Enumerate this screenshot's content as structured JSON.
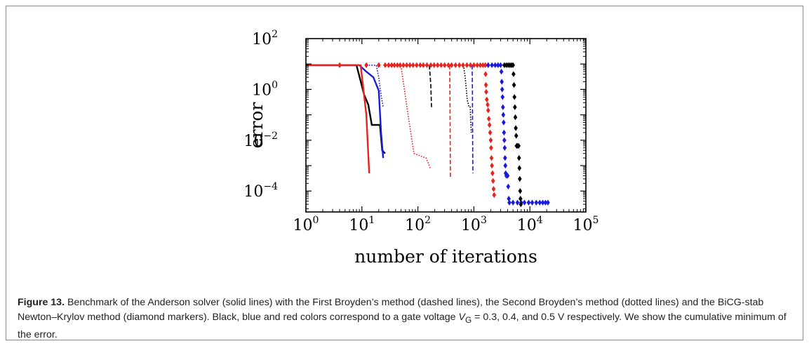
{
  "figure": {
    "label": "Figure 13.",
    "caption_part1": " Benchmark of the Anderson solver (solid lines) with the First Broyden’s method (dashed lines), the Second Broyden’s method (dotted lines) and the BiCG-stab Newton–Krylov method (diamond markers). Black, blue and red colors correspond to a gate voltage ",
    "caption_symbol": "V",
    "caption_subscript": "G",
    "caption_part2": " = 0.3, 0.4, and 0.5 V respectively. We show the cumulative minimum of the error."
  },
  "colors": {
    "black": "#000000",
    "blue": "#1a1adc",
    "red": "#e8231e"
  },
  "chart_data": {
    "type": "line",
    "title": "",
    "xlabel": "number of iterations",
    "ylabel": "error",
    "xscale": "log",
    "yscale": "log",
    "xlim": [
      1,
      100000
    ],
    "ylim": [
      1.5e-05,
      100
    ],
    "xticks": [
      {
        "value": 1,
        "base": "10",
        "exp": "0"
      },
      {
        "value": 10,
        "base": "10",
        "exp": "1"
      },
      {
        "value": 100,
        "base": "10",
        "exp": "2"
      },
      {
        "value": 1000,
        "base": "10",
        "exp": "3"
      },
      {
        "value": 10000,
        "base": "10",
        "exp": "4"
      },
      {
        "value": 100000,
        "base": "10",
        "exp": "5"
      }
    ],
    "yticks": [
      {
        "value": 0.0001,
        "base": "10",
        "exp": "−4"
      },
      {
        "value": 0.01,
        "base": "10",
        "exp": "−2"
      },
      {
        "value": 1,
        "base": "10",
        "exp": "0"
      },
      {
        "value": 100,
        "base": "10",
        "exp": "2"
      }
    ],
    "grid": false,
    "legend": "none",
    "series": [
      {
        "method": "Anderson",
        "color": "black",
        "style": "solid",
        "points": [
          [
            1,
            9
          ],
          [
            8,
            9
          ],
          [
            11,
            0.6
          ],
          [
            13,
            0.25
          ],
          [
            15,
            0.04
          ],
          [
            18,
            0.04
          ],
          [
            21,
            0.04
          ],
          [
            23,
            0.004
          ],
          [
            26,
            0.003
          ]
        ]
      },
      {
        "method": "Anderson",
        "color": "blue",
        "style": "solid",
        "points": [
          [
            1,
            9
          ],
          [
            9,
            9
          ],
          [
            12,
            5
          ],
          [
            16,
            3
          ],
          [
            20,
            0.9
          ],
          [
            22,
            0.02
          ],
          [
            24,
            0.002
          ]
        ]
      },
      {
        "method": "Anderson",
        "color": "red",
        "style": "solid",
        "points": [
          [
            1,
            9
          ],
          [
            8,
            9
          ],
          [
            9.5,
            9
          ],
          [
            12,
            0.1
          ],
          [
            13.5,
            0.0005
          ]
        ]
      },
      {
        "method": "First Broyden",
        "color": "black",
        "style": "dashed",
        "points": [
          [
            160,
            9
          ],
          [
            170,
            1.5
          ],
          [
            175,
            0.2
          ]
        ]
      },
      {
        "method": "First Broyden",
        "color": "red",
        "style": "dashed",
        "points": [
          [
            370,
            9
          ],
          [
            375,
            0.2
          ],
          [
            380,
            0.0003
          ]
        ]
      },
      {
        "method": "First Broyden",
        "color": "blue",
        "style": "dashed",
        "points": [
          [
            930,
            9
          ],
          [
            940,
            1
          ],
          [
            950,
            0.01
          ],
          [
            960,
            0.0005
          ]
        ]
      },
      {
        "method": "Second Broyden",
        "color": "blue",
        "style": "dotted",
        "points": [
          [
            12,
            9
          ],
          [
            18,
            9
          ],
          [
            20,
            3
          ],
          [
            22,
            0.6
          ],
          [
            24,
            0.2
          ]
        ]
      },
      {
        "method": "Second Broyden",
        "color": "red",
        "style": "dotted",
        "points": [
          [
            40,
            9
          ],
          [
            50,
            8
          ],
          [
            60,
            0.5
          ],
          [
            70,
            0.05
          ],
          [
            85,
            0.003
          ],
          [
            140,
            0.002
          ],
          [
            160,
            0.001
          ],
          [
            165,
            0.0008
          ]
        ]
      },
      {
        "method": "Second Broyden",
        "color": "black",
        "style": "dotted",
        "points": [
          [
            650,
            9
          ],
          [
            700,
            3
          ],
          [
            760,
            0.4
          ],
          [
            820,
            0.2
          ],
          [
            860,
            0.2
          ],
          [
            880,
            0.05
          ],
          [
            900,
            0.02
          ]
        ]
      },
      {
        "method": "BiCG-stab Newton–Krylov",
        "color": "red",
        "style": "diamonds",
        "points": [
          [
            4,
            9
          ],
          [
            12,
            9
          ],
          [
            20,
            9
          ],
          [
            26,
            9
          ],
          [
            30,
            9
          ],
          [
            34,
            9
          ],
          [
            38,
            9
          ],
          [
            43,
            9
          ],
          [
            48,
            9
          ],
          [
            55,
            9
          ],
          [
            63,
            9
          ],
          [
            72,
            9
          ],
          [
            82,
            9
          ],
          [
            95,
            9
          ],
          [
            110,
            9
          ],
          [
            125,
            9
          ],
          [
            145,
            9
          ],
          [
            170,
            9
          ],
          [
            195,
            9
          ],
          [
            225,
            9
          ],
          [
            260,
            9
          ],
          [
            300,
            9
          ],
          [
            350,
            9
          ],
          [
            400,
            9
          ],
          [
            470,
            9
          ],
          [
            550,
            9
          ],
          [
            640,
            9
          ],
          [
            750,
            9
          ],
          [
            870,
            9
          ],
          [
            1000,
            9
          ],
          [
            1150,
            9
          ],
          [
            1300,
            9
          ],
          [
            1450,
            9
          ],
          [
            1600,
            9
          ],
          [
            1620,
            4
          ],
          [
            1640,
            1.5
          ],
          [
            1660,
            0.8
          ],
          [
            1700,
            0.4
          ],
          [
            1760,
            0.25
          ],
          [
            1800,
            0.15
          ],
          [
            1850,
            0.07
          ],
          [
            1900,
            0.04
          ],
          [
            1950,
            0.02
          ],
          [
            2000,
            0.01
          ],
          [
            2030,
            0.005
          ],
          [
            2060,
            0.002
          ],
          [
            2100,
            0.001
          ],
          [
            2150,
            0.0005
          ],
          [
            2200,
            0.00025
          ],
          [
            2250,
            0.00012
          ],
          [
            2300,
            7e-05
          ]
        ]
      },
      {
        "method": "BiCG-stab Newton–Krylov",
        "color": "blue",
        "style": "diamonds",
        "points": [
          [
            1800,
            9
          ],
          [
            2100,
            9
          ],
          [
            2400,
            9
          ],
          [
            2700,
            9
          ],
          [
            3000,
            9
          ],
          [
            3100,
            5
          ],
          [
            3150,
            2
          ],
          [
            3200,
            1
          ],
          [
            3250,
            0.5
          ],
          [
            3300,
            0.2
          ],
          [
            3350,
            0.1
          ],
          [
            3400,
            0.05
          ],
          [
            3450,
            0.02
          ],
          [
            3500,
            0.01
          ],
          [
            3550,
            0.005
          ],
          [
            3600,
            0.002
          ],
          [
            3650,
            0.001
          ],
          [
            3700,
            0.0005
          ],
          [
            3800,
            0.0004
          ],
          [
            4000,
            0.0004
          ],
          [
            4100,
            0.00015
          ],
          [
            4200,
            5e-05
          ],
          [
            4300,
            3.5e-05
          ],
          [
            5000,
            3.5e-05
          ],
          [
            6000,
            3.5e-05
          ],
          [
            7000,
            3.5e-05
          ],
          [
            8000,
            3.5e-05
          ],
          [
            9500,
            3.5e-05
          ],
          [
            11000,
            3.5e-05
          ],
          [
            13000,
            3.5e-05
          ],
          [
            15000,
            3.5e-05
          ],
          [
            17000,
            3.5e-05
          ],
          [
            19000,
            3.5e-05
          ],
          [
            21000,
            3.5e-05
          ]
        ]
      },
      {
        "method": "BiCG-stab Newton–Krylov",
        "color": "black",
        "style": "diamonds",
        "points": [
          [
            3500,
            9
          ],
          [
            3800,
            9
          ],
          [
            4100,
            9
          ],
          [
            4400,
            9
          ],
          [
            4700,
            9
          ],
          [
            5000,
            9
          ],
          [
            5100,
            4
          ],
          [
            5200,
            1.5
          ],
          [
            5300,
            0.5
          ],
          [
            5400,
            0.2
          ],
          [
            5500,
            0.08
          ],
          [
            5600,
            0.03
          ],
          [
            5700,
            0.015
          ],
          [
            5800,
            0.006
          ],
          [
            6000,
            0.006
          ],
          [
            6300,
            0.006
          ],
          [
            6400,
            0.002
          ],
          [
            6500,
            0.0008
          ],
          [
            6600,
            0.0003
          ],
          [
            6700,
            0.0001
          ],
          [
            6800,
            5e-05
          ],
          [
            6900,
            3e-05
          ]
        ]
      }
    ]
  }
}
